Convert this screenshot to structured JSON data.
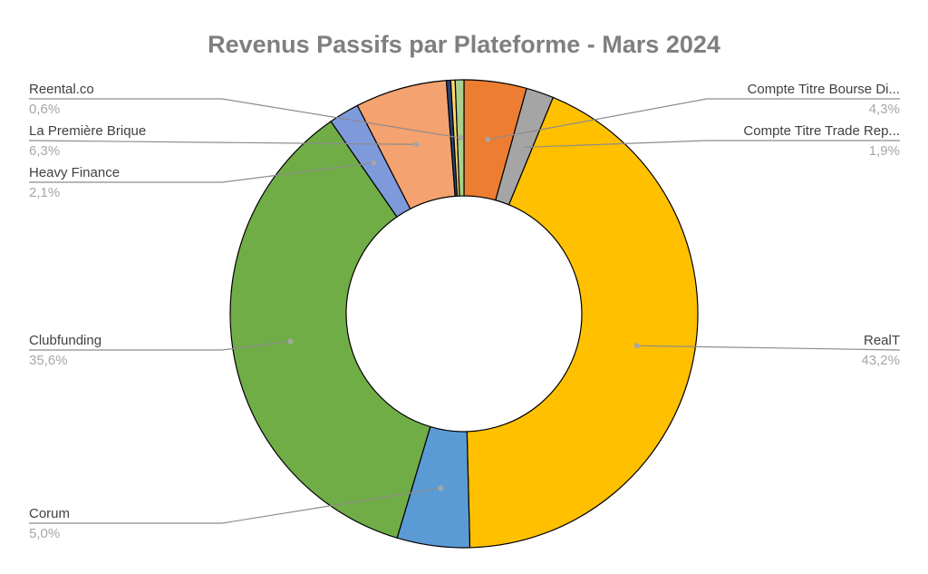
{
  "chart_data": {
    "type": "pie",
    "donut": true,
    "title": "Revenus Passifs par Plateforme - Mars 2024",
    "slices": [
      {
        "name": "Compte Titre Bourse Di...",
        "value": 4.3,
        "label": "4,3%",
        "color": "#ED7D31"
      },
      {
        "name": "Compte Titre Trade Rep...",
        "value": 1.9,
        "label": "1,9%",
        "color": "#A5A5A5"
      },
      {
        "name": "RealT",
        "value": 43.2,
        "label": "43,2%",
        "color": "#FFC000"
      },
      {
        "name": "Corum",
        "value": 5.0,
        "label": "5,0%",
        "color": "#5B9BD5"
      },
      {
        "name": "Clubfunding",
        "value": 35.6,
        "label": "35,6%",
        "color": "#70AD47"
      },
      {
        "name": "Heavy Finance",
        "value": 2.1,
        "label": "2,1%",
        "color": "#7F9ADB"
      },
      {
        "name": "La Première Brique",
        "value": 6.3,
        "label": "6,3%",
        "color": "#F4A26F"
      },
      {
        "name": "",
        "value": 0.3,
        "label": "",
        "color": "#264478"
      },
      {
        "name": "",
        "value": 0.3,
        "label": "",
        "color": "#FFD966"
      },
      {
        "name": "Reental.co",
        "value": 0.6,
        "label": "0,6%",
        "color": "#A9D08E"
      }
    ],
    "legend": "none"
  }
}
